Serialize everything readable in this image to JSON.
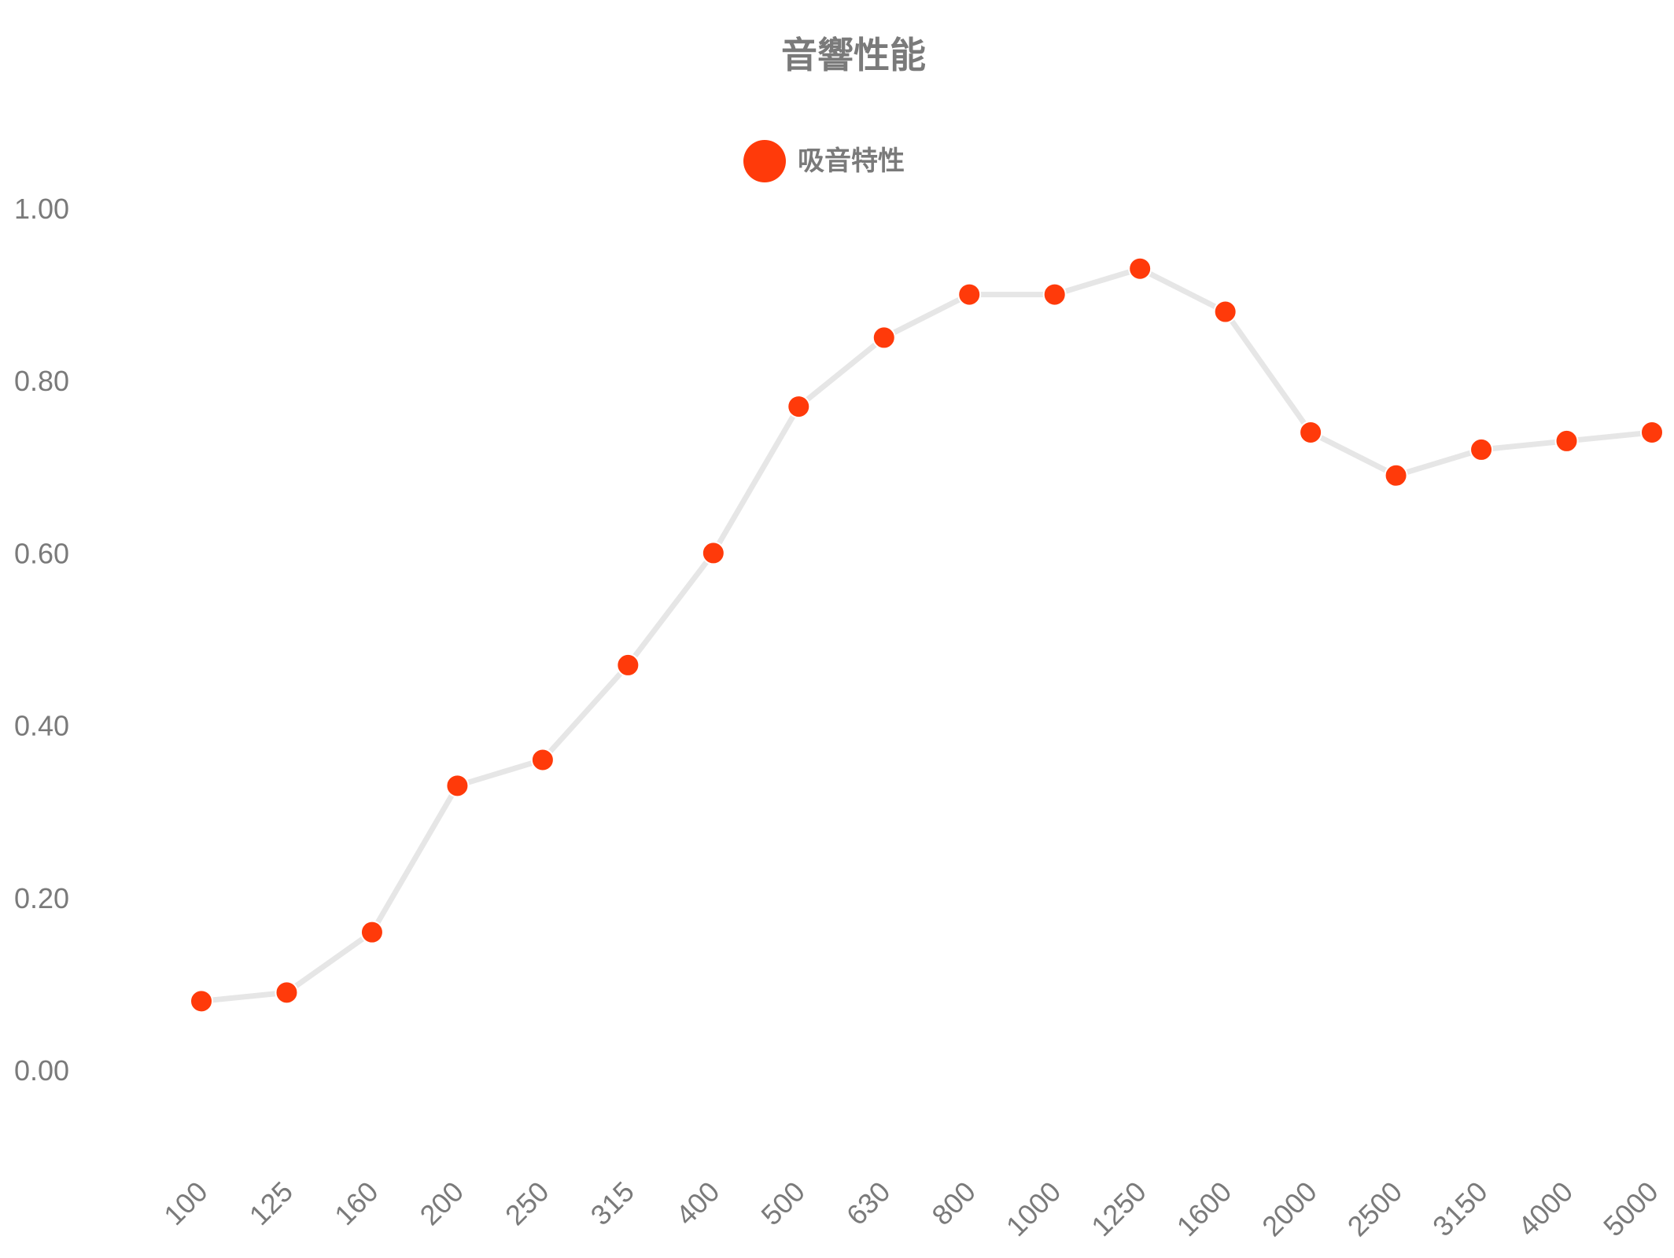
{
  "chart_data": {
    "type": "line",
    "title": "音響性能",
    "xlabel": "",
    "ylabel": "",
    "categories": [
      "100",
      "125",
      "160",
      "200",
      "250",
      "315",
      "400",
      "500",
      "630",
      "800",
      "1000",
      "1250",
      "1600",
      "2000",
      "2500",
      "3150",
      "4000",
      "5000"
    ],
    "series": [
      {
        "name": "吸音特性",
        "values": [
          0.08,
          0.09,
          0.16,
          0.33,
          0.36,
          0.47,
          0.6,
          0.77,
          0.85,
          0.9,
          0.9,
          0.93,
          0.88,
          0.74,
          0.69,
          0.72,
          0.73,
          0.74
        ],
        "line_color": "#e6e6e6",
        "marker_color": "#ff3a0a"
      }
    ],
    "y_ticks": [
      "0.00",
      "0.20",
      "0.40",
      "0.60",
      "0.80",
      "1.00"
    ],
    "ylim": [
      -0.12,
      1.08
    ],
    "grid": false,
    "legend_position": "top-center"
  },
  "colors": {
    "text": "#7a7a7a",
    "marker": "#ff3a0a",
    "line": "#e6e6e6",
    "background": "#ffffff"
  }
}
